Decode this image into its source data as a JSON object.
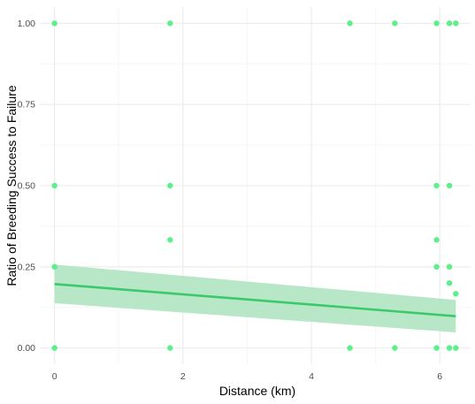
{
  "chart_data": {
    "type": "scatter",
    "xlabel": "Distance (km)",
    "ylabel": "Ratio of Breeding Success to Failure",
    "xlim": [
      -0.23,
      6.48
    ],
    "ylim": [
      -0.05,
      1.05
    ],
    "x_ticks": [
      0,
      2,
      4,
      6
    ],
    "x_tick_labels": [
      "0",
      "2",
      "4",
      "6"
    ],
    "y_ticks": [
      0,
      0.25,
      0.5,
      0.75,
      1.0
    ],
    "y_tick_labels": [
      "0.00",
      "0.25",
      "0.50",
      "0.75",
      "1.00"
    ],
    "grid": true,
    "points": [
      [
        0,
        1.0
      ],
      [
        0,
        0.5
      ],
      [
        0,
        0.25
      ],
      [
        0,
        0.0
      ],
      [
        1.8,
        1.0
      ],
      [
        1.8,
        0.5
      ],
      [
        1.8,
        0.333
      ],
      [
        1.8,
        0.0
      ],
      [
        4.6,
        1.0
      ],
      [
        4.6,
        0.0
      ],
      [
        5.3,
        1.0
      ],
      [
        5.3,
        0.0
      ],
      [
        5.95,
        1.0
      ],
      [
        5.95,
        0.5
      ],
      [
        5.95,
        0.333
      ],
      [
        5.95,
        0.25
      ],
      [
        5.95,
        0.0
      ],
      [
        6.15,
        1.0
      ],
      [
        6.15,
        0.5
      ],
      [
        6.15,
        0.25
      ],
      [
        6.15,
        0.2
      ],
      [
        6.15,
        0.0
      ],
      [
        6.25,
        1.0
      ],
      [
        6.25,
        0.167
      ],
      [
        6.25,
        0.0
      ]
    ],
    "fit": {
      "x": [
        0,
        6.25
      ],
      "y": [
        0.197,
        0.098
      ],
      "ci_lower": [
        0.138,
        0.048
      ],
      "ci_upper": [
        0.257,
        0.148
      ]
    },
    "colors": {
      "point": "#5cf08a",
      "fit_line": "#3cc96a",
      "ci_band": "#b3e6c3",
      "grid_major": "#ebebeb",
      "grid_minor": "#f5f5f5"
    }
  }
}
